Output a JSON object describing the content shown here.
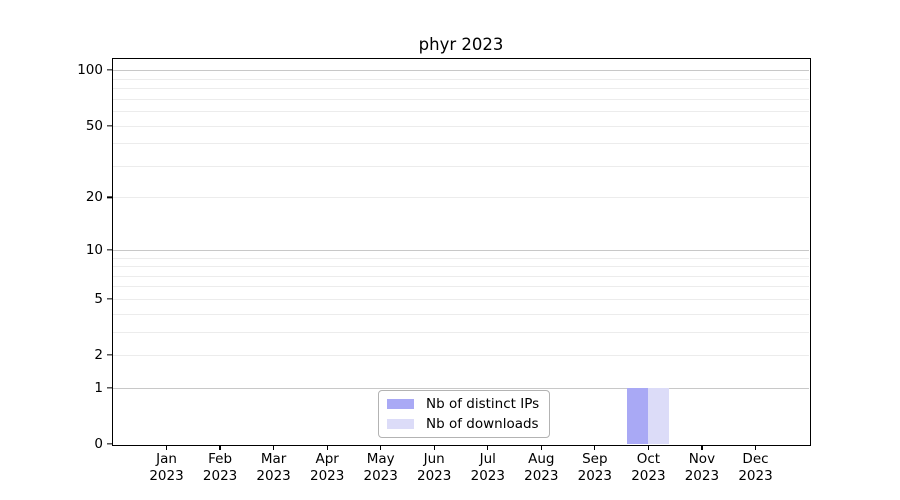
{
  "figure": {
    "background": "#ffffff"
  },
  "chart_data": {
    "type": "bar",
    "title": "phyr 2023",
    "categories": [
      "Jan 2023",
      "Feb 2023",
      "Mar 2023",
      "Apr 2023",
      "May 2023",
      "Jun 2023",
      "Jul 2023",
      "Aug 2023",
      "Sep 2023",
      "Oct 2023",
      "Nov 2023",
      "Dec 2023"
    ],
    "series": [
      {
        "name": "Nb of distinct IPs",
        "color": "#a9a9f5",
        "values": [
          0,
          0,
          0,
          0,
          0,
          0,
          0,
          0,
          0,
          1,
          0,
          0
        ]
      },
      {
        "name": "Nb of downloads",
        "color": "#dcdcf8",
        "values": [
          0,
          0,
          0,
          0,
          0,
          0,
          0,
          0,
          0,
          1,
          0,
          0
        ]
      }
    ],
    "y_axis": {
      "scale": "log1p",
      "tick_values": [
        0,
        1,
        2,
        5,
        10,
        20,
        50,
        100
      ],
      "major_grid_values": [
        1,
        10,
        100
      ],
      "minor_grid_values": [
        2,
        3,
        4,
        5,
        6,
        7,
        8,
        9,
        20,
        30,
        40,
        50,
        60,
        70,
        80,
        90
      ],
      "range_max": 115
    },
    "legend": {
      "position": "lower center"
    },
    "grid": {
      "major_color": "#c8c8c8",
      "minor_color": "#ececec"
    },
    "spine_color": "#000000"
  }
}
